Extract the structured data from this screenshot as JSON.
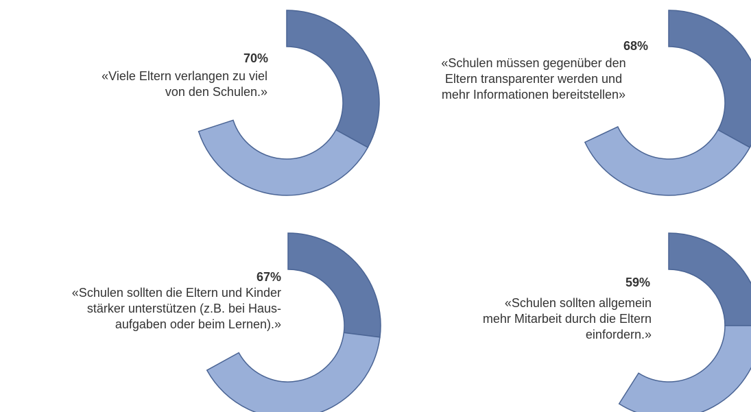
{
  "chart_data": [
    {
      "type": "donut",
      "label": "70%",
      "text": [
        "«Viele Eltern verlangen zu viel",
        "von den Schulen.»"
      ],
      "values": [
        33,
        37
      ],
      "colors": [
        "#6079a8",
        "#99afd8"
      ]
    },
    {
      "type": "donut",
      "label": "68%",
      "text": [
        "«Schulen müssen gegenüber den",
        "Eltern transparenter werden und",
        "mehr Informationen bereitstellen»"
      ],
      "values": [
        33,
        35
      ],
      "colors": [
        "#6079a8",
        "#99afd8"
      ]
    },
    {
      "type": "donut",
      "label": "67%",
      "text": [
        "«Schulen sollten die Eltern und Kinder",
        "stärker unterstützen (z.B. bei Haus-",
        "aufgaben oder beim Lernen).»"
      ],
      "values": [
        27,
        40
      ],
      "colors": [
        "#6079a8",
        "#99afd8"
      ]
    },
    {
      "type": "donut",
      "label": "59%",
      "text": [
        "«Schulen sollten allgemein",
        "mehr Mitarbeit durch die Eltern",
        "einfordern.»"
      ],
      "values": [
        25,
        34
      ],
      "colors": [
        "#6079a8",
        "#99afd8"
      ]
    }
  ]
}
